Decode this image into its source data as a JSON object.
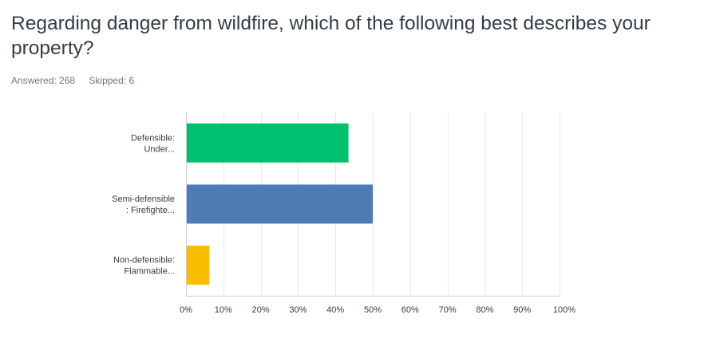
{
  "question": {
    "title": "Regarding danger from wildfire, which of the following best describes your property?",
    "answered_label": "Answered: 268",
    "skipped_label": "Skipped: 6"
  },
  "chart_data": {
    "type": "bar",
    "orientation": "horizontal",
    "categories": [
      [
        "Defensible:",
        "Under..."
      ],
      [
        "Semi-defensible",
        ": Firefighte..."
      ],
      [
        "Non-defensible:",
        "Flammable..."
      ]
    ],
    "values": [
      43.5,
      50.0,
      6.3
    ],
    "colors": [
      "#00bf6f",
      "#507cb6",
      "#f9be00"
    ],
    "xlim": [
      0,
      100
    ],
    "xticks": [
      "0%",
      "10%",
      "20%",
      "30%",
      "40%",
      "50%",
      "60%",
      "70%",
      "80%",
      "90%",
      "100%"
    ],
    "grid": true,
    "legend": false
  }
}
